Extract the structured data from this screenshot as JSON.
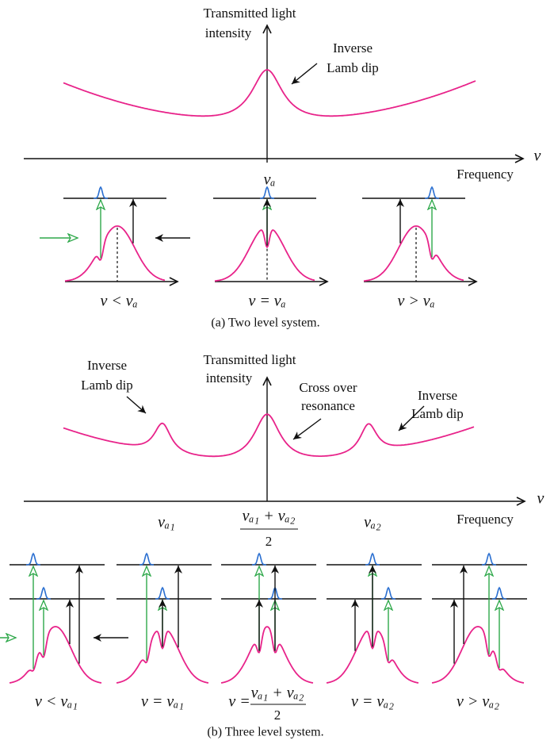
{
  "part_a": {
    "y_axis_label": [
      "Transmitted light",
      "intensity"
    ],
    "annotation": [
      "Inverse",
      "Lamb dip"
    ],
    "x_axis_symbol": "ν",
    "x_axis_label": "Frequency",
    "resonance_label": "νₐ",
    "panel_labels": [
      "ν < νₐ",
      "ν = νₐ",
      "ν > νₐ"
    ],
    "caption": "(a) Two level system."
  },
  "part_b": {
    "y_axis_label": [
      "Transmitted light",
      "intensity"
    ],
    "left_annotation": [
      "Inverse",
      "Lamb dip"
    ],
    "center_annotation": [
      "Cross over",
      "resonance"
    ],
    "right_annotation": [
      "Inverse",
      "Lamb dip"
    ],
    "x_axis_symbol": "ν",
    "x_axis_label": "Frequency",
    "resonance_1": "νₐ₁",
    "crossover": {
      "numerator": "νₐ₁ + νₐ₂",
      "denominator": "2"
    },
    "resonance_2": "νₐ₂",
    "panel_labels": [
      "ν < νₐ₁",
      "ν = νₐ₁",
      {
        "lhs": "ν =",
        "numerator": "νₐ₁ + νₐ₂",
        "denominator": "2"
      },
      "ν = νₐ₂",
      "ν > νₐ₂"
    ],
    "caption": "(b) Three level system."
  }
}
